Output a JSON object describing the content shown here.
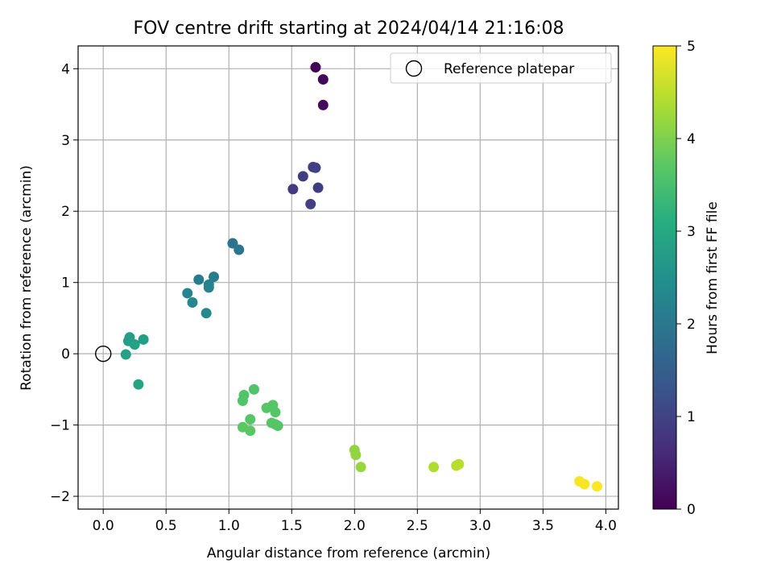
{
  "chart_data": {
    "type": "scatter",
    "title": "FOV centre drift starting at 2024/04/14 21:16:08",
    "xlabel": "Angular distance from reference (arcmin)",
    "ylabel": "Rotation from reference (arcmin)",
    "xlim": [
      -0.2,
      4.1
    ],
    "ylim": [
      -2.18,
      4.32
    ],
    "xticks": [
      "0.0",
      "0.5",
      "1.0",
      "1.5",
      "2.0",
      "2.5",
      "3.0",
      "3.5",
      "4.0"
    ],
    "yticks": [
      "−2",
      "−1",
      "0",
      "1",
      "2",
      "3",
      "4"
    ],
    "grid": true,
    "legend": {
      "position": "top-right",
      "entries": [
        "Reference platepar"
      ]
    },
    "reference_point": {
      "x": 0.0,
      "y": 0.0,
      "marker": "open-circle"
    },
    "colorbar": {
      "label": "Hours from first FF file",
      "range": [
        0,
        5
      ],
      "ticks": [
        "0",
        "1",
        "2",
        "3",
        "4",
        "5"
      ],
      "colormap": "viridis"
    },
    "points": [
      {
        "x": 1.69,
        "y": 4.02,
        "c": 0.05
      },
      {
        "x": 1.75,
        "y": 3.85,
        "c": 0.1
      },
      {
        "x": 1.75,
        "y": 3.49,
        "c": 0.15
      },
      {
        "x": 1.67,
        "y": 2.62,
        "c": 0.95
      },
      {
        "x": 1.69,
        "y": 2.61,
        "c": 0.95
      },
      {
        "x": 1.59,
        "y": 2.49,
        "c": 0.9
      },
      {
        "x": 1.51,
        "y": 2.31,
        "c": 0.85
      },
      {
        "x": 1.71,
        "y": 2.33,
        "c": 0.9
      },
      {
        "x": 1.65,
        "y": 2.1,
        "c": 0.95
      },
      {
        "x": 1.03,
        "y": 1.55,
        "c": 1.9
      },
      {
        "x": 1.08,
        "y": 1.46,
        "c": 1.95
      },
      {
        "x": 0.76,
        "y": 1.04,
        "c": 2.1
      },
      {
        "x": 0.88,
        "y": 1.08,
        "c": 2.1
      },
      {
        "x": 0.84,
        "y": 0.97,
        "c": 2.15
      },
      {
        "x": 0.84,
        "y": 0.93,
        "c": 2.2
      },
      {
        "x": 0.67,
        "y": 0.85,
        "c": 2.25
      },
      {
        "x": 0.71,
        "y": 0.72,
        "c": 2.3
      },
      {
        "x": 0.82,
        "y": 0.57,
        "c": 2.35
      },
      {
        "x": 0.21,
        "y": 0.23,
        "c": 2.8
      },
      {
        "x": 0.2,
        "y": 0.18,
        "c": 2.8
      },
      {
        "x": 0.32,
        "y": 0.2,
        "c": 2.8
      },
      {
        "x": 0.25,
        "y": 0.13,
        "c": 2.85
      },
      {
        "x": 0.18,
        "y": -0.01,
        "c": 2.85
      },
      {
        "x": 0.28,
        "y": -0.43,
        "c": 2.9
      },
      {
        "x": 1.2,
        "y": -0.5,
        "c": 3.6
      },
      {
        "x": 1.12,
        "y": -0.58,
        "c": 3.6
      },
      {
        "x": 1.11,
        "y": -0.66,
        "c": 3.6
      },
      {
        "x": 1.35,
        "y": -0.72,
        "c": 3.65
      },
      {
        "x": 1.3,
        "y": -0.76,
        "c": 3.65
      },
      {
        "x": 1.37,
        "y": -0.82,
        "c": 3.65
      },
      {
        "x": 1.17,
        "y": -0.92,
        "c": 3.65
      },
      {
        "x": 1.34,
        "y": -0.97,
        "c": 3.65
      },
      {
        "x": 1.37,
        "y": -0.99,
        "c": 3.65
      },
      {
        "x": 1.39,
        "y": -1.01,
        "c": 3.65
      },
      {
        "x": 1.11,
        "y": -1.03,
        "c": 3.7
      },
      {
        "x": 1.17,
        "y": -1.08,
        "c": 3.7
      },
      {
        "x": 2.0,
        "y": -1.35,
        "c": 4.15
      },
      {
        "x": 2.01,
        "y": -1.42,
        "c": 4.15
      },
      {
        "x": 2.05,
        "y": -1.59,
        "c": 4.2
      },
      {
        "x": 2.63,
        "y": -1.59,
        "c": 4.4
      },
      {
        "x": 2.81,
        "y": -1.57,
        "c": 4.45
      },
      {
        "x": 2.83,
        "y": -1.55,
        "c": 4.45
      },
      {
        "x": 3.79,
        "y": -1.79,
        "c": 4.95
      },
      {
        "x": 3.83,
        "y": -1.83,
        "c": 4.95
      },
      {
        "x": 3.93,
        "y": -1.86,
        "c": 5.0
      }
    ]
  }
}
